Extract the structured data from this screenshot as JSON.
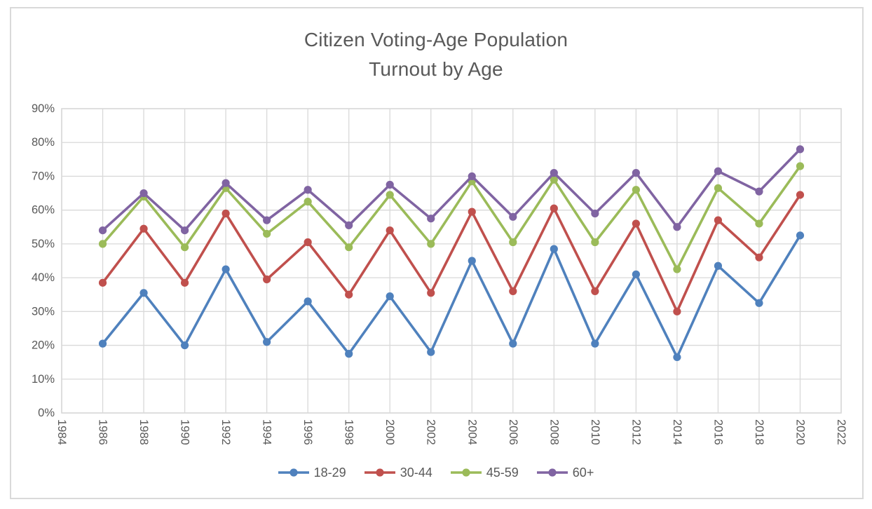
{
  "window": {
    "background": "#ffffff",
    "frame_border_color": "#d9d9d9"
  },
  "title": {
    "line1": "Citizen Voting-Age Population",
    "line2": "Turnout by Age",
    "color": "#595959"
  },
  "chart_data": {
    "type": "line",
    "title": "Citizen Voting-Age Population Turnout by Age",
    "x": [
      1986,
      1988,
      1990,
      1992,
      1994,
      1996,
      1998,
      2000,
      2002,
      2004,
      2006,
      2008,
      2010,
      2012,
      2014,
      2016,
      2018,
      2020
    ],
    "series": [
      {
        "name": "18-29",
        "color": "#4F81BD",
        "values": [
          20.5,
          35.5,
          20,
          42.5,
          21,
          33,
          17.5,
          34.5,
          18,
          45,
          20.5,
          48.5,
          20.5,
          41,
          16.5,
          43.5,
          32.5,
          52.5
        ]
      },
      {
        "name": "30-44",
        "color": "#C0504D",
        "values": [
          38.5,
          54.5,
          38.5,
          59,
          39.5,
          50.5,
          35,
          54,
          35.5,
          59.5,
          36,
          60.5,
          36,
          56,
          30,
          57,
          46,
          64.5
        ]
      },
      {
        "name": "45-59",
        "color": "#9BBB59",
        "values": [
          50,
          64,
          49,
          66.5,
          53,
          62.5,
          49,
          64.5,
          50,
          68.5,
          50.5,
          69,
          50.5,
          66,
          42.5,
          66.5,
          56,
          73
        ]
      },
      {
        "name": "60+",
        "color": "#8064A2",
        "values": [
          54,
          65,
          54,
          68,
          57,
          66,
          55.5,
          67.5,
          57.5,
          70,
          58,
          71,
          59,
          71,
          55,
          71.5,
          65.5,
          78
        ]
      }
    ],
    "xlim": [
      1984,
      2022
    ],
    "ylim": [
      0,
      90
    ],
    "x_ticks": [
      1984,
      1986,
      1988,
      1990,
      1992,
      1994,
      1996,
      1998,
      2000,
      2002,
      2004,
      2006,
      2008,
      2010,
      2012,
      2014,
      2016,
      2018,
      2020,
      2022
    ],
    "y_ticks": [
      0,
      10,
      20,
      30,
      40,
      50,
      60,
      70,
      80,
      90
    ],
    "y_tick_suffix": "%",
    "grid": true,
    "gridline_color": "#d9d9d9",
    "plot_border_color": "#d9d9d9",
    "tick_label_color": "#595959",
    "legend_position": "bottom",
    "x_tick_label_rotation_deg": 90
  }
}
